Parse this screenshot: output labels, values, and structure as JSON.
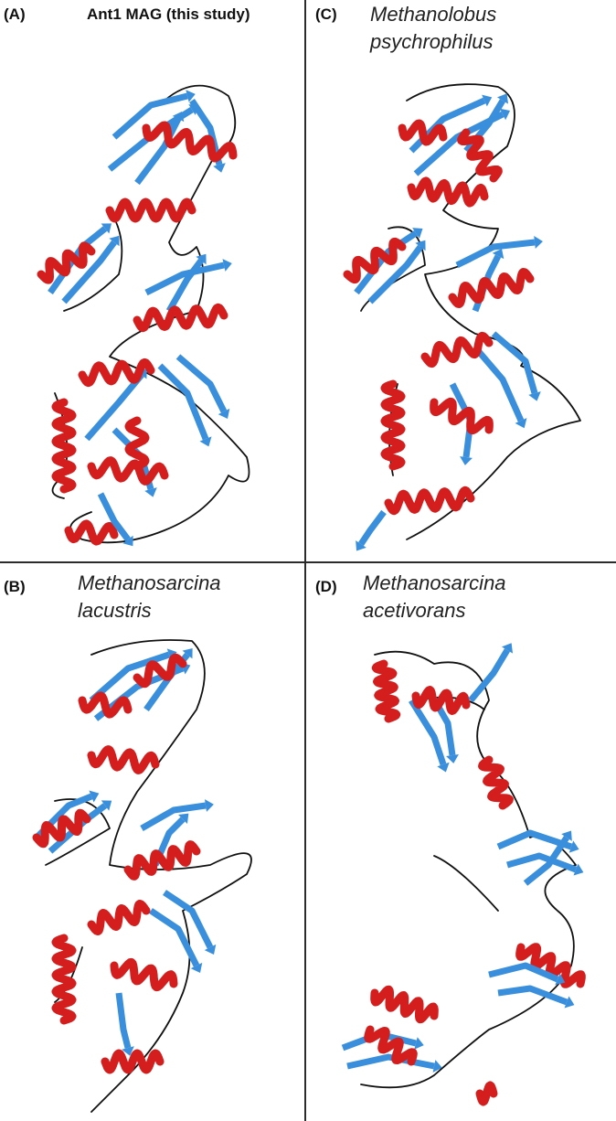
{
  "colors": {
    "helix": "#d41e1e",
    "strand": "#3a8fdc",
    "coil": "#111111",
    "divider": "#2b2b2b"
  },
  "panels": {
    "a": {
      "letter": "(A)",
      "title": "Ant1 MAG (this study)"
    },
    "b": {
      "letter": "(B)",
      "title_line1": "Methanosarcina",
      "title_line2": "lacustris"
    },
    "c": {
      "letter": "(C)",
      "title_line1": "Methanolobus",
      "title_line2": "psychrophilus"
    },
    "d": {
      "letter": "(D)",
      "title_line1": "Methanosarcina",
      "title_line2": "acetivorans"
    }
  }
}
